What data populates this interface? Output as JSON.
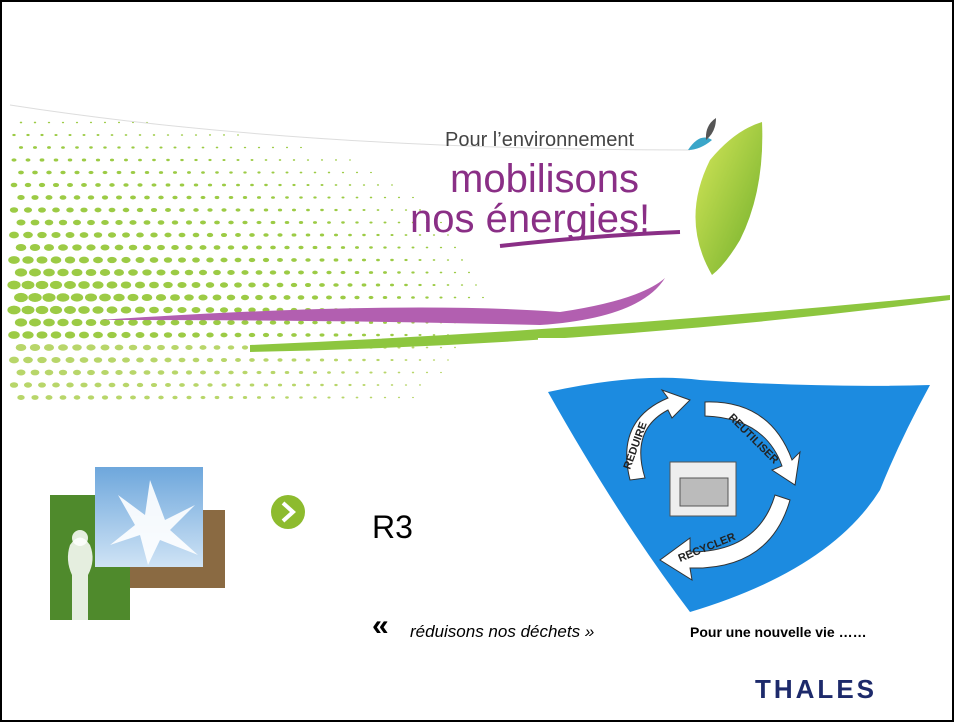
{
  "slide": {
    "logo": {
      "line1": "Pour l’environnement",
      "line2": "mobilisons",
      "line3": "nos énergies!"
    },
    "heading": "R3",
    "quote_mark": "«",
    "quote": "réduisons nos déchets »",
    "caption": "Pour une nouvelle vie ……",
    "brand": "THALES",
    "cycle": {
      "labels": [
        "REDUIRE",
        "REUTILISER",
        "RECYCLER"
      ]
    }
  }
}
